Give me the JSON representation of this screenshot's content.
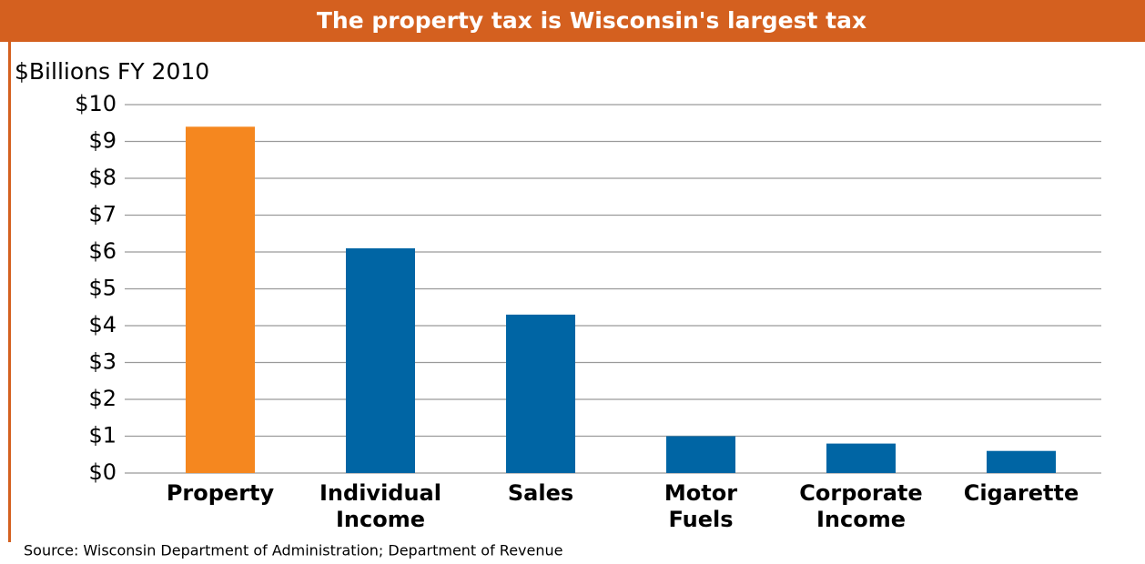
{
  "chart_data": {
    "type": "bar",
    "title": "The property tax is Wisconsin's largest tax",
    "y_axis_label": "$Billions FY 2010",
    "categories": [
      "Property",
      "Individual Income",
      "Sales",
      "Motor Fuels",
      "Corporate Income",
      "Cigarette"
    ],
    "values": [
      9.4,
      6.1,
      4.3,
      1.0,
      0.8,
      0.6
    ],
    "colors": [
      "#f5871f",
      "#0065a4",
      "#0065a4",
      "#0065a4",
      "#0065a4",
      "#0065a4"
    ],
    "ylim": [
      0,
      10
    ],
    "yticks": [
      {
        "value": 0,
        "label": "$0"
      },
      {
        "value": 1,
        "label": "$1"
      },
      {
        "value": 2,
        "label": "$2"
      },
      {
        "value": 3,
        "label": "$3"
      },
      {
        "value": 4,
        "label": "$4"
      },
      {
        "value": 5,
        "label": "$5"
      },
      {
        "value": 6,
        "label": "$6"
      },
      {
        "value": 7,
        "label": "$7"
      },
      {
        "value": 8,
        "label": "$8"
      },
      {
        "value": 9,
        "label": "$9"
      },
      {
        "value": 10,
        "label": "$10"
      }
    ],
    "grid": true,
    "source": "Source: Wisconsin Department of Administration; Department of Revenue"
  }
}
